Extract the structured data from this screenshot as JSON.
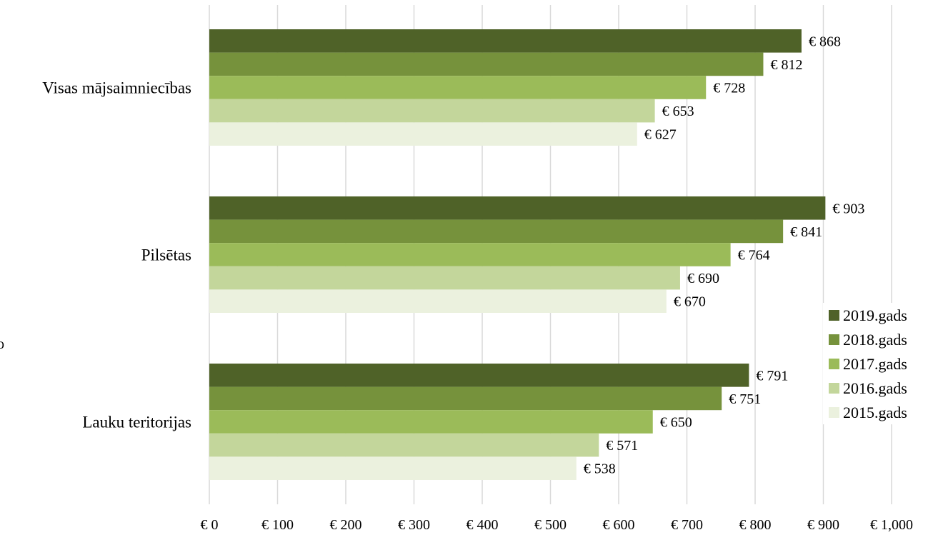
{
  "chart_data": {
    "type": "bar",
    "orientation": "horizontal",
    "categories": [
      "Visas mājsaimniecības",
      "Pilsētas",
      "Lauku teritorijas"
    ],
    "series": [
      {
        "name": "2019.gads",
        "color": "#4f6228",
        "values": [
          868,
          903,
          791
        ],
        "labels": [
          "€ 868",
          "€ 903",
          "€ 791"
        ]
      },
      {
        "name": "2018.gads",
        "color": "#76923c",
        "values": [
          812,
          841,
          751
        ],
        "labels": [
          "€ 812",
          "€ 841",
          "€ 751"
        ]
      },
      {
        "name": "2017.gads",
        "color": "#9bbb59",
        "values": [
          728,
          764,
          650
        ],
        "labels": [
          "€ 728",
          "€ 764",
          "€ 650"
        ]
      },
      {
        "name": "2016.gads",
        "color": "#c3d69b",
        "values": [
          653,
          690,
          571
        ],
        "labels": [
          "€ 653",
          "€ 690",
          "€ 571"
        ]
      },
      {
        "name": "2015.gads",
        "color": "#ebf1de",
        "values": [
          627,
          670,
          538
        ],
        "labels": [
          "€ 627",
          "€ 670",
          "€ 538"
        ]
      }
    ],
    "xlim": [
      0,
      1000
    ],
    "x_ticks": [
      0,
      100,
      200,
      300,
      400,
      500,
      600,
      700,
      800,
      900,
      1000
    ],
    "x_tick_labels": [
      "€ 0",
      "€ 100",
      "€ 200",
      "€ 300",
      "€ 400",
      "€ 500",
      "€ 600",
      "€ 700",
      "€ 800",
      "€ 900",
      "€ 1,000"
    ],
    "grid": "vertical",
    "grid_color": "#d9d9d9",
    "legend_position": "right",
    "title": "",
    "xlabel": "",
    "ylabel": ""
  },
  "stray_text": "o"
}
